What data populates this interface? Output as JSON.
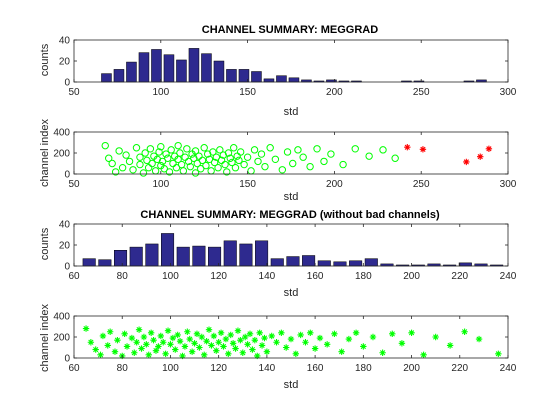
{
  "figure": {
    "title_top": "CHANNEL SUMMARY: MEGGRAD",
    "title_bottom": "CHANNEL SUMMARY: MEGGRAD (without bad channels)"
  },
  "chart_data": [
    {
      "type": "bar",
      "title": "CHANNEL SUMMARY: MEGGRAD",
      "xlabel": "std",
      "ylabel": "counts",
      "xlim": [
        50,
        300
      ],
      "ylim": [
        0,
        40
      ],
      "xticks": [
        50,
        100,
        150,
        200,
        250,
        300
      ],
      "yticks": [
        0,
        20,
        40
      ],
      "bar_color": "#2e2a8f",
      "bin_width": 7.2,
      "centers": [
        68.7,
        75.9,
        83.1,
        90.3,
        97.5,
        104.7,
        111.9,
        119.1,
        126.3,
        133.5,
        140.7,
        147.9,
        155.1,
        162.3,
        169.5,
        176.7,
        183.9,
        191.1,
        198.3,
        205.5,
        212.7,
        241.5,
        248.7,
        277.5,
        284.7
      ],
      "values": [
        8,
        12,
        19,
        28,
        31,
        26,
        21,
        32,
        27,
        20,
        12,
        12,
        10,
        3,
        6,
        4,
        2,
        1,
        2,
        1,
        1,
        1,
        1,
        1,
        2
      ]
    },
    {
      "type": "scatter",
      "xlabel": "std",
      "ylabel": "channel index",
      "xlim": [
        50,
        300
      ],
      "ylim": [
        0,
        400
      ],
      "xticks": [
        50,
        100,
        150,
        200,
        250,
        300
      ],
      "yticks": [
        0,
        200,
        400
      ],
      "series": [
        {
          "color": "#00ff00",
          "marker": "circle",
          "points": [
            [
              68,
              270
            ],
            [
              70,
              150
            ],
            [
              72,
              100
            ],
            [
              74,
              20
            ],
            [
              76,
              220
            ],
            [
              78,
              60
            ],
            [
              80,
              180
            ],
            [
              82,
              120
            ],
            [
              84,
              40
            ],
            [
              86,
              250
            ],
            [
              88,
              90
            ],
            [
              88,
              160
            ],
            [
              90,
              10
            ],
            [
              91,
              200
            ],
            [
              92,
              130
            ],
            [
              93,
              60
            ],
            [
              94,
              240
            ],
            [
              95,
              100
            ],
            [
              96,
              170
            ],
            [
              97,
              30
            ],
            [
              98,
              140
            ],
            [
              99,
              210
            ],
            [
              100,
              80
            ],
            [
              100,
              260
            ],
            [
              101,
              120
            ],
            [
              102,
              50
            ],
            [
              103,
              190
            ],
            [
              104,
              150
            ],
            [
              105,
              20
            ],
            [
              106,
              230
            ],
            [
              107,
              100
            ],
            [
              108,
              170
            ],
            [
              109,
              60
            ],
            [
              110,
              140
            ],
            [
              110,
              270
            ],
            [
              111,
              200
            ],
            [
              112,
              90
            ],
            [
              113,
              30
            ],
            [
              114,
              160
            ],
            [
              115,
              240
            ],
            [
              116,
              120
            ],
            [
              117,
              70
            ],
            [
              118,
              190
            ],
            [
              119,
              150
            ],
            [
              120,
              10
            ],
            [
              120,
              220
            ],
            [
              121,
              100
            ],
            [
              122,
              170
            ],
            [
              123,
              50
            ],
            [
              124,
              130
            ],
            [
              125,
              250
            ],
            [
              126,
              80
            ],
            [
              127,
              190
            ],
            [
              128,
              140
            ],
            [
              129,
              30
            ],
            [
              130,
              210
            ],
            [
              131,
              110
            ],
            [
              132,
              160
            ],
            [
              133,
              60
            ],
            [
              134,
              230
            ],
            [
              135,
              130
            ],
            [
              136,
              180
            ],
            [
              137,
              90
            ],
            [
              138,
              20
            ],
            [
              139,
              200
            ],
            [
              140,
              150
            ],
            [
              141,
              110
            ],
            [
              142,
              250
            ],
            [
              143,
              60
            ],
            [
              144,
              170
            ],
            [
              145,
              130
            ],
            [
              146,
              210
            ],
            [
              148,
              90
            ],
            [
              150,
              160
            ],
            [
              152,
              30
            ],
            [
              154,
              230
            ],
            [
              156,
              120
            ],
            [
              158,
              190
            ],
            [
              160,
              70
            ],
            [
              163,
              250
            ],
            [
              166,
              140
            ],
            [
              170,
              40
            ],
            [
              173,
              210
            ],
            [
              176,
              100
            ],
            [
              179,
              230
            ],
            [
              182,
              160
            ],
            [
              186,
              70
            ],
            [
              190,
              240
            ],
            [
              194,
              120
            ],
            [
              198,
              190
            ],
            [
              205,
              90
            ],
            [
              212,
              240
            ],
            [
              220,
              170
            ],
            [
              228,
              230
            ],
            [
              235,
              150
            ]
          ]
        },
        {
          "color": "#ff0000",
          "marker": "star",
          "points": [
            [
              242,
              255
            ],
            [
              251,
              235
            ],
            [
              276,
              115
            ],
            [
              284,
              165
            ],
            [
              289,
              240
            ]
          ]
        }
      ]
    },
    {
      "type": "bar",
      "title": "CHANNEL SUMMARY: MEGGRAD (without bad channels)",
      "xlabel": "std",
      "ylabel": "counts",
      "xlim": [
        60,
        240
      ],
      "ylim": [
        0,
        40
      ],
      "xticks": [
        60,
        80,
        100,
        120,
        140,
        160,
        180,
        200,
        220,
        240
      ],
      "yticks": [
        0,
        20,
        40
      ],
      "bar_color": "#2e2a8f",
      "bin_width": 6.5,
      "centers": [
        66.3,
        72.8,
        79.3,
        85.8,
        92.3,
        98.8,
        105.3,
        111.8,
        118.3,
        124.8,
        131.3,
        137.8,
        144.3,
        150.8,
        157.3,
        163.8,
        170.3,
        176.8,
        183.3,
        189.8,
        196.3,
        202.8,
        209.3,
        215.8,
        222.3,
        228.8,
        235.3
      ],
      "values": [
        7,
        6,
        15,
        18,
        21,
        31,
        18,
        19,
        18,
        24,
        21,
        24,
        7,
        9,
        10,
        5,
        4,
        5,
        7,
        2,
        1,
        1,
        2,
        1,
        3,
        2,
        1
      ]
    },
    {
      "type": "scatter",
      "xlabel": "std",
      "ylabel": "channel index",
      "xlim": [
        60,
        240
      ],
      "ylim": [
        0,
        400
      ],
      "xticks": [
        60,
        80,
        100,
        120,
        140,
        160,
        180,
        200,
        220,
        240
      ],
      "yticks": [
        0,
        200,
        400
      ],
      "series": [
        {
          "color": "#00ff00",
          "marker": "star",
          "points": [
            [
              65,
              280
            ],
            [
              67,
              150
            ],
            [
              69,
              80
            ],
            [
              71,
              30
            ],
            [
              72,
              210
            ],
            [
              74,
              120
            ],
            [
              75,
              250
            ],
            [
              77,
              60
            ],
            [
              78,
              170
            ],
            [
              80,
              20
            ],
            [
              81,
              230
            ],
            [
              82,
              110
            ],
            [
              84,
              190
            ],
            [
              85,
              50
            ],
            [
              86,
              150
            ],
            [
              87,
              270
            ],
            [
              88,
              90
            ],
            [
              89,
              200
            ],
            [
              90,
              130
            ],
            [
              91,
              30
            ],
            [
              92,
              240
            ],
            [
              93,
              170
            ],
            [
              94,
              70
            ],
            [
              95,
              110
            ],
            [
              96,
              210
            ],
            [
              97,
              150
            ],
            [
              98,
              40
            ],
            [
              99,
              260
            ],
            [
              100,
              130
            ],
            [
              101,
              190
            ],
            [
              102,
              80
            ],
            [
              103,
              220
            ],
            [
              104,
              160
            ],
            [
              105,
              20
            ],
            [
              106,
              110
            ],
            [
              107,
              250
            ],
            [
              108,
              180
            ],
            [
              109,
              60
            ],
            [
              110,
              140
            ],
            [
              111,
              230
            ],
            [
              112,
              100
            ],
            [
              113,
              200
            ],
            [
              114,
              30
            ],
            [
              115,
              160
            ],
            [
              116,
              270
            ],
            [
              117,
              120
            ],
            [
              118,
              210
            ],
            [
              119,
              70
            ],
            [
              120,
              150
            ],
            [
              121,
              240
            ],
            [
              122,
              110
            ],
            [
              123,
              180
            ],
            [
              124,
              40
            ],
            [
              125,
              220
            ],
            [
              126,
              140
            ],
            [
              127,
              90
            ],
            [
              128,
              260
            ],
            [
              129,
              170
            ],
            [
              130,
              50
            ],
            [
              131,
              200
            ],
            [
              132,
              130
            ],
            [
              133,
              230
            ],
            [
              134,
              80
            ],
            [
              135,
              170
            ],
            [
              136,
              20
            ],
            [
              137,
              240
            ],
            [
              138,
              120
            ],
            [
              139,
              190
            ],
            [
              140,
              60
            ],
            [
              142,
              210
            ],
            [
              144,
              150
            ],
            [
              146,
              240
            ],
            [
              148,
              100
            ],
            [
              150,
              180
            ],
            [
              152,
              40
            ],
            [
              154,
              220
            ],
            [
              156,
              150
            ],
            [
              158,
              240
            ],
            [
              160,
              90
            ],
            [
              162,
              190
            ],
            [
              165,
              130
            ],
            [
              168,
              230
            ],
            [
              171,
              60
            ],
            [
              174,
              180
            ],
            [
              177,
              240
            ],
            [
              180,
              110
            ],
            [
              184,
              200
            ],
            [
              188,
              50
            ],
            [
              192,
              230
            ],
            [
              196,
              140
            ],
            [
              200,
              240
            ],
            [
              205,
              30
            ],
            [
              210,
              200
            ],
            [
              216,
              120
            ],
            [
              222,
              250
            ],
            [
              228,
              180
            ],
            [
              236,
              40
            ]
          ]
        }
      ]
    }
  ]
}
